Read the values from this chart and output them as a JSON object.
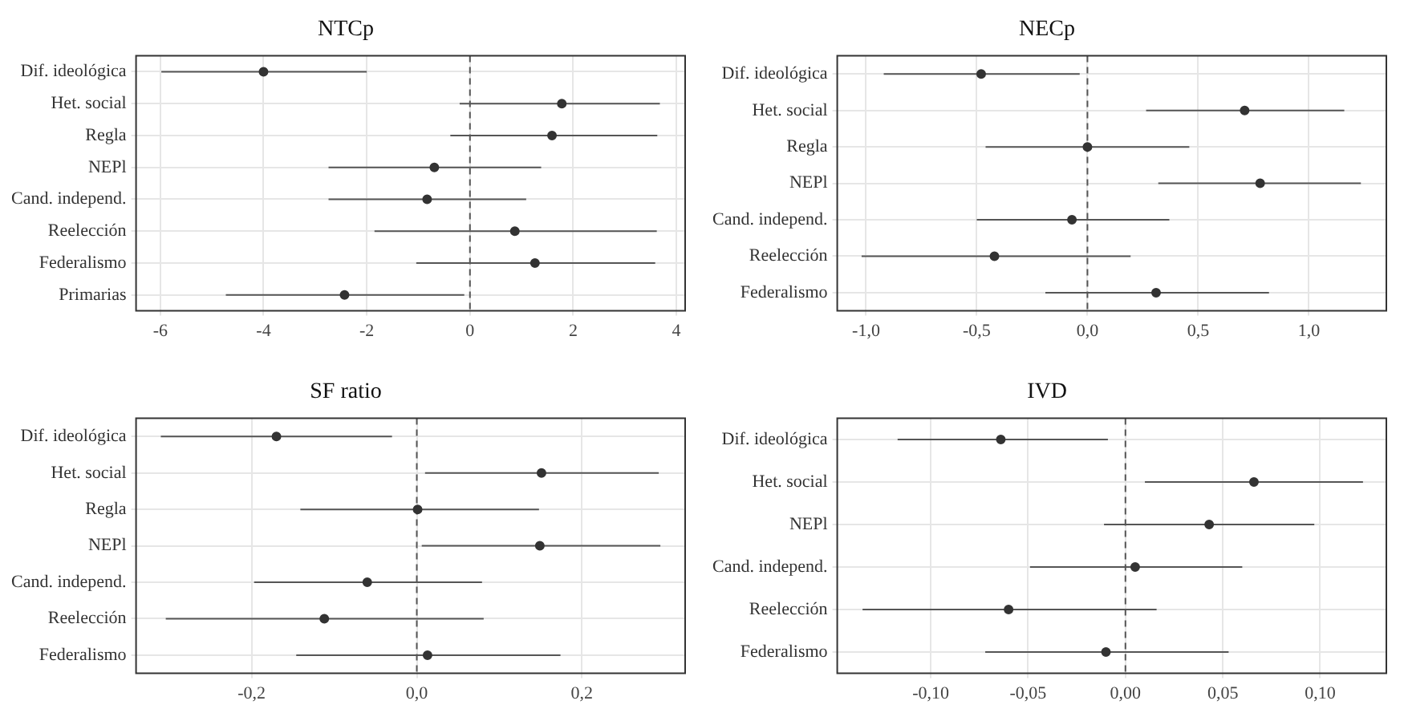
{
  "chart_data": [
    {
      "type": "scatter",
      "title": "NTCp",
      "categories": [
        "Dif. ideológica",
        "Het. social",
        "Regla",
        "NEPl",
        "Cand. independ.",
        "Reelección",
        "Federalismo",
        "Primarias"
      ],
      "orientation": "horizontal",
      "series": [
        {
          "color": "#333333",
          "values": [
            -4.0,
            1.78,
            1.59,
            -0.69,
            -0.83,
            0.87,
            1.26,
            -2.43
          ],
          "errors": [
            [
              -5.98,
              -2.0
            ],
            [
              -0.2,
              3.68
            ],
            [
              -0.38,
              3.63
            ],
            [
              -2.74,
              1.38
            ],
            [
              -2.74,
              1.09
            ],
            [
              -1.85,
              3.62
            ],
            [
              -1.04,
              3.59
            ],
            [
              -4.73,
              -0.11
            ]
          ]
        }
      ],
      "xlim": [
        -6.47,
        4.17
      ],
      "xticks": [
        -6,
        -4,
        -2,
        0,
        2,
        4
      ],
      "grid": true,
      "marker": "circle",
      "legend": false,
      "ref_lines": [
        {
          "axis": "x",
          "value": 0,
          "line_style": "dashed",
          "color": "#555555"
        }
      ]
    },
    {
      "type": "scatter",
      "title": "NECp",
      "categories": [
        "Dif. ideológica",
        "Het. social",
        "Regla",
        "NEPl",
        "Cand. independ.",
        "Reelección",
        "Federalismo"
      ],
      "orientation": "horizontal",
      "series": [
        {
          "color": "#333333",
          "values": [
            -0.48,
            0.71,
            0.0,
            0.78,
            -0.07,
            -0.42,
            0.31
          ],
          "errors": [
            [
              -0.92,
              -0.035
            ],
            [
              0.265,
              1.16
            ],
            [
              -0.46,
              0.46
            ],
            [
              0.32,
              1.235
            ],
            [
              -0.5,
              0.37
            ],
            [
              -1.02,
              0.195
            ],
            [
              -0.19,
              0.82
            ]
          ]
        }
      ],
      "xlim": [
        -1.13,
        1.35
      ],
      "xticks": [
        {
          "value": -1,
          "label": "-1,0"
        },
        {
          "value": -0.5,
          "label": "-0,5"
        },
        {
          "value": 0,
          "label": "0,0"
        },
        {
          "value": 0.5,
          "label": "0,5"
        },
        {
          "value": 1,
          "label": "1,0"
        }
      ],
      "grid": true,
      "marker": "circle",
      "legend": false,
      "ref_lines": [
        {
          "axis": "x",
          "value": 0,
          "line_style": "dashed",
          "color": "#555555"
        }
      ]
    },
    {
      "type": "scatter",
      "title": "SF ratio",
      "categories": [
        "Dif. ideológica",
        "Het. social",
        "Regla",
        "NEPl",
        "Cand. independ.",
        "Reelección",
        "Federalismo"
      ],
      "orientation": "horizontal",
      "series": [
        {
          "color": "#333333",
          "values": [
            -0.17,
            0.151,
            0.001,
            0.149,
            -0.06,
            -0.112,
            0.013
          ],
          "errors": [
            [
              -0.31,
              -0.03
            ],
            [
              0.01,
              0.293
            ],
            [
              -0.141,
              0.148
            ],
            [
              0.006,
              0.295
            ],
            [
              -0.197,
              0.079
            ],
            [
              -0.304,
              0.081
            ],
            [
              -0.146,
              0.174
            ]
          ]
        }
      ],
      "xlim": [
        -0.34,
        0.325
      ],
      "xticks": [
        {
          "value": -0.2,
          "label": "-0,2"
        },
        {
          "value": 0,
          "label": "0,0"
        },
        {
          "value": 0.2,
          "label": "0,2"
        }
      ],
      "grid": true,
      "marker": "circle",
      "legend": false,
      "ref_lines": [
        {
          "axis": "x",
          "value": 0,
          "line_style": "dashed",
          "color": "#555555"
        }
      ]
    },
    {
      "type": "scatter",
      "title": "IVD",
      "categories": [
        "Dif. ideológica",
        "Het. social",
        "NEPl",
        "Cand. independ.",
        "Reelección",
        "Federalismo"
      ],
      "orientation": "horizontal",
      "series": [
        {
          "color": "#333333",
          "values": [
            -0.064,
            0.066,
            0.043,
            0.005,
            -0.06,
            -0.01
          ],
          "errors": [
            [
              -0.117,
              -0.009
            ],
            [
              0.01,
              0.122
            ],
            [
              -0.011,
              0.097
            ],
            [
              -0.049,
              0.06
            ],
            [
              -0.135,
              0.016
            ],
            [
              -0.072,
              0.053
            ]
          ]
        }
      ],
      "xlim": [
        -0.148,
        0.134
      ],
      "xticks": [
        {
          "value": -0.1,
          "label": "-0,10"
        },
        {
          "value": -0.05,
          "label": "-0,05"
        },
        {
          "value": 0,
          "label": "0,00"
        },
        {
          "value": 0.05,
          "label": "0,05"
        },
        {
          "value": 0.1,
          "label": "0,10"
        }
      ],
      "grid": true,
      "marker": "circle",
      "legend": false,
      "ref_lines": [
        {
          "axis": "x",
          "value": 0,
          "line_style": "dashed",
          "color": "#555555"
        }
      ]
    }
  ]
}
